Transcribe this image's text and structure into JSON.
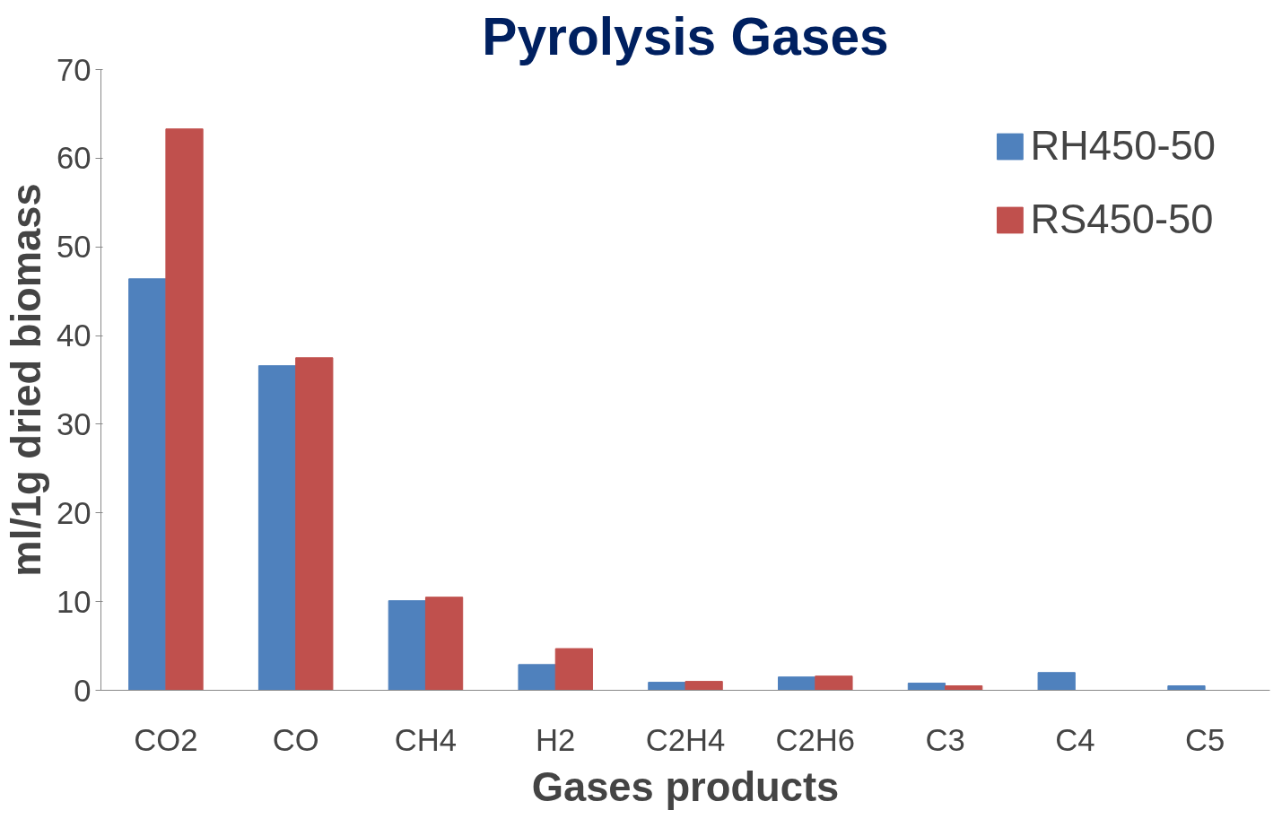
{
  "chart_data": {
    "type": "bar",
    "title": "Pyrolysis Gases",
    "xlabel": "Gases products",
    "ylabel": "ml/1g dried biomass",
    "categories": [
      "CO2",
      "CO",
      "CH4",
      "H2",
      "C2H4",
      "C2H6",
      "C3",
      "C4",
      "C5"
    ],
    "series": [
      {
        "name": "RH450-50",
        "color": "#4f81bd",
        "values": [
          46.4,
          36.6,
          10.1,
          2.9,
          0.9,
          1.5,
          0.8,
          2.0,
          0.5
        ]
      },
      {
        "name": "RS450-50",
        "color": "#c0504d",
        "values": [
          63.3,
          37.5,
          10.5,
          4.7,
          1.0,
          1.6,
          0.5,
          null,
          null
        ]
      }
    ],
    "ylim": [
      0,
      70
    ],
    "yticks": [
      0,
      10,
      20,
      30,
      40,
      50,
      60,
      70
    ],
    "grid": false,
    "legend": "top right"
  }
}
